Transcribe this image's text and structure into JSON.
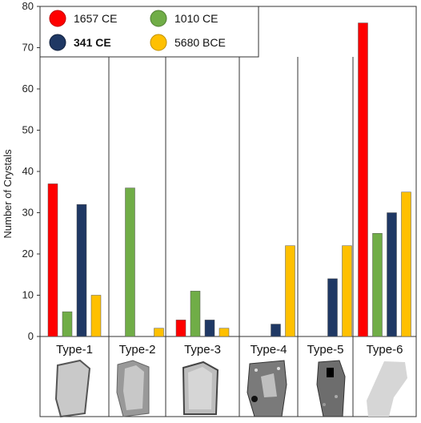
{
  "chart_data": {
    "type": "bar",
    "title": "",
    "xlabel": "",
    "ylabel": "Number of Crystals",
    "ylim": [
      0,
      80
    ],
    "yticks": [
      0,
      10,
      20,
      30,
      40,
      50,
      60,
      70,
      80
    ],
    "categories": [
      "Type-1",
      "Type-2",
      "Type-3",
      "Type-4",
      "Type-5",
      "Type-6"
    ],
    "series": [
      {
        "name": "1657 CE",
        "color": "#ff0000",
        "values": [
          37,
          0,
          4,
          0,
          0,
          76
        ]
      },
      {
        "name": "1010 CE",
        "color": "#70ad47",
        "values": [
          6,
          36,
          11,
          0,
          0,
          25
        ]
      },
      {
        "name": "341 CE",
        "color": "#1f3864",
        "values": [
          32,
          0,
          4,
          3,
          14,
          30
        ]
      },
      {
        "name": "5680 BCE",
        "color": "#ffc000",
        "values": [
          10,
          2,
          2,
          22,
          22,
          35
        ]
      }
    ],
    "legend_placement": "top-left",
    "grid": false,
    "crystal_images": [
      "crystal-type-1",
      "crystal-type-2",
      "crystal-type-3",
      "crystal-type-4",
      "crystal-type-5",
      "crystal-type-6"
    ]
  }
}
